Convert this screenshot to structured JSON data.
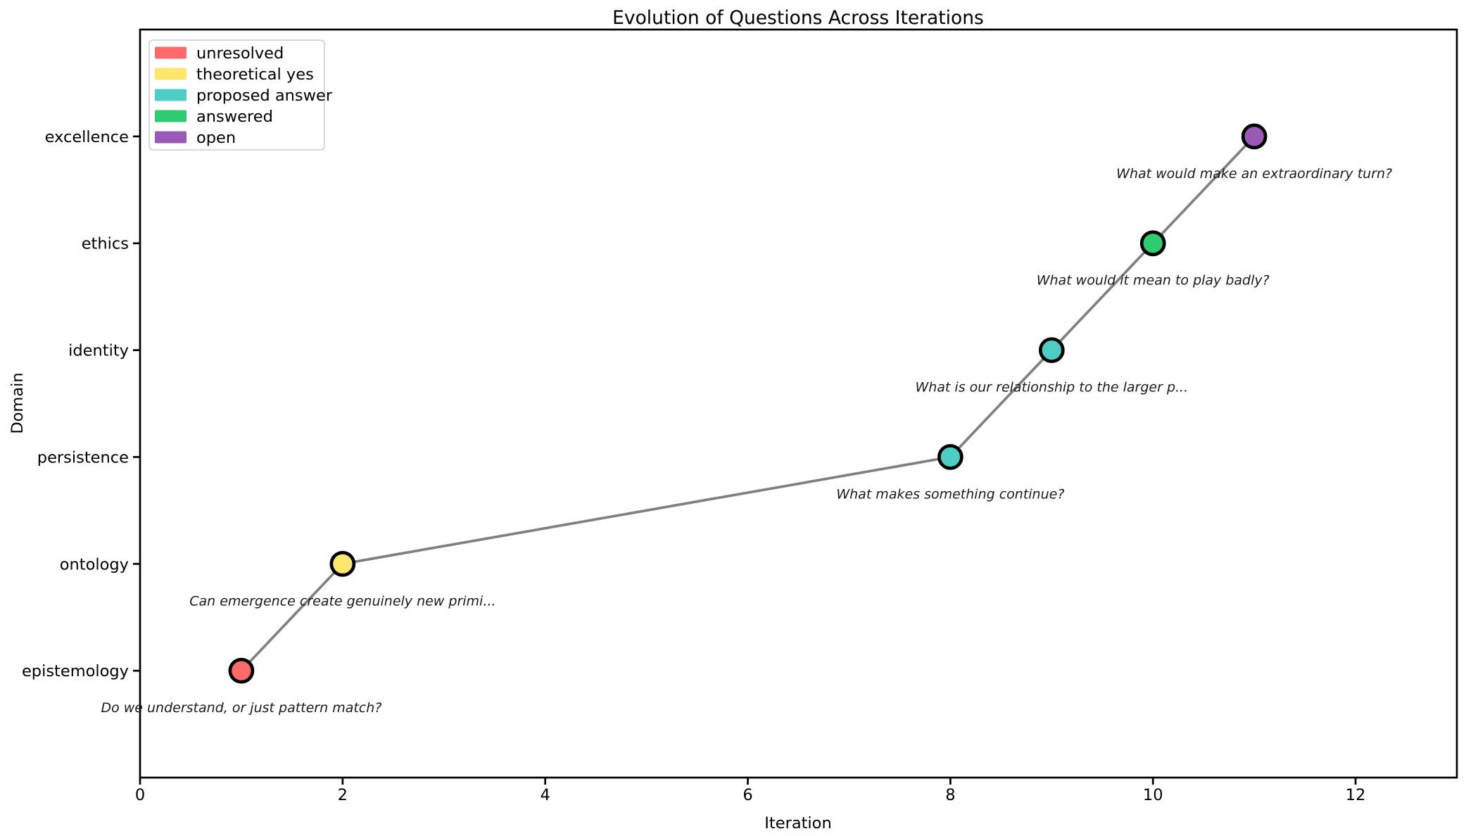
{
  "chart_data": {
    "type": "scatter",
    "title": "Evolution of Questions Across Iterations",
    "xlabel": "Iteration",
    "ylabel": "Domain",
    "xlim": [
      0,
      13
    ],
    "xticks": [
      0,
      2,
      4,
      6,
      8,
      10,
      12
    ],
    "y_categories": [
      "epistemology",
      "ontology",
      "persistence",
      "identity",
      "ethics",
      "excellence"
    ],
    "grid": false,
    "legend": {
      "position": "upper left",
      "entries": [
        {
          "label": "unresolved",
          "color": "#ff6b6b"
        },
        {
          "label": "theoretical yes",
          "color": "#ffe66d"
        },
        {
          "label": "proposed answer",
          "color": "#4ecdc4"
        },
        {
          "label": "answered",
          "color": "#2ecc71"
        },
        {
          "label": "open",
          "color": "#9b59b6"
        }
      ]
    },
    "line": {
      "color": "#808080",
      "width": 3.7
    },
    "marker": {
      "radius": 16,
      "edge_color": "#000000",
      "edge_width": 4.7
    },
    "points": [
      {
        "iteration": 1,
        "domain": "epistemology",
        "status": "unresolved",
        "annotation": "Do we understand, or just pattern match?"
      },
      {
        "iteration": 2,
        "domain": "ontology",
        "status": "theoretical yes",
        "annotation": "Can emergence create genuinely new primi..."
      },
      {
        "iteration": 8,
        "domain": "persistence",
        "status": "proposed answer",
        "annotation": "What makes something continue?"
      },
      {
        "iteration": 9,
        "domain": "identity",
        "status": "proposed answer",
        "annotation": "What is our relationship to the larger p..."
      },
      {
        "iteration": 10,
        "domain": "ethics",
        "status": "answered",
        "annotation": "What would it mean to play badly?"
      },
      {
        "iteration": 11,
        "domain": "excellence",
        "status": "open",
        "annotation": "What would make an extraordinary turn?"
      }
    ]
  }
}
